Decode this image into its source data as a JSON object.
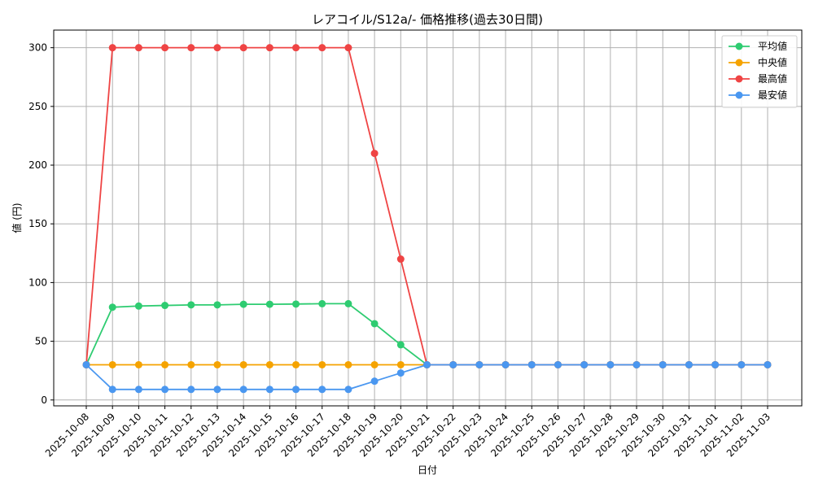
{
  "chart_data": {
    "type": "line",
    "title": "レアコイル/S12a/- 価格推移(過去30日間)",
    "xlabel": "日付",
    "ylabel": "値 (円)",
    "ylim": [
      -5,
      315
    ],
    "yticks": [
      0,
      50,
      100,
      150,
      200,
      250,
      300
    ],
    "grid": true,
    "legend_position": "top-right",
    "x": [
      "2025-10-08",
      "2025-10-09",
      "2025-10-10",
      "2025-10-11",
      "2025-10-12",
      "2025-10-13",
      "2025-10-14",
      "2025-10-15",
      "2025-10-16",
      "2025-10-17",
      "2025-10-18",
      "2025-10-19",
      "2025-10-20",
      "2025-10-21",
      "2025-10-22",
      "2025-10-23",
      "2025-10-24",
      "2025-10-25",
      "2025-10-26",
      "2025-10-27",
      "2025-10-28",
      "2025-10-29",
      "2025-10-30",
      "2025-10-31",
      "2025-11-01",
      "2025-11-02",
      "2025-11-03"
    ],
    "series": [
      {
        "name": "平均値",
        "color": "#2ecc71",
        "values": [
          30,
          79,
          80,
          80.5,
          81,
          81,
          81.5,
          81.5,
          81.7,
          82,
          82,
          65,
          47,
          30,
          30,
          30,
          30,
          30,
          30,
          30,
          30,
          30,
          30,
          30,
          30,
          30,
          30
        ]
      },
      {
        "name": "中央値",
        "color": "#f5a300",
        "values": [
          30,
          30,
          30,
          30,
          30,
          30,
          30,
          30,
          30,
          30,
          30,
          30,
          30,
          30,
          30,
          30,
          30,
          30,
          30,
          30,
          30,
          30,
          30,
          30,
          30,
          30,
          30
        ]
      },
      {
        "name": "最高値",
        "color": "#ef4444",
        "values": [
          30,
          300,
          300,
          300,
          300,
          300,
          300,
          300,
          300,
          300,
          300,
          210,
          120,
          30,
          30,
          30,
          30,
          30,
          30,
          30,
          30,
          30,
          30,
          30,
          30,
          30,
          30
        ]
      },
      {
        "name": "最安値",
        "color": "#4a97f0",
        "values": [
          30,
          9,
          9,
          9,
          9,
          9,
          9,
          9,
          9,
          9,
          9,
          16,
          23,
          30,
          30,
          30,
          30,
          30,
          30,
          30,
          30,
          30,
          30,
          30,
          30,
          30,
          30
        ]
      }
    ]
  }
}
